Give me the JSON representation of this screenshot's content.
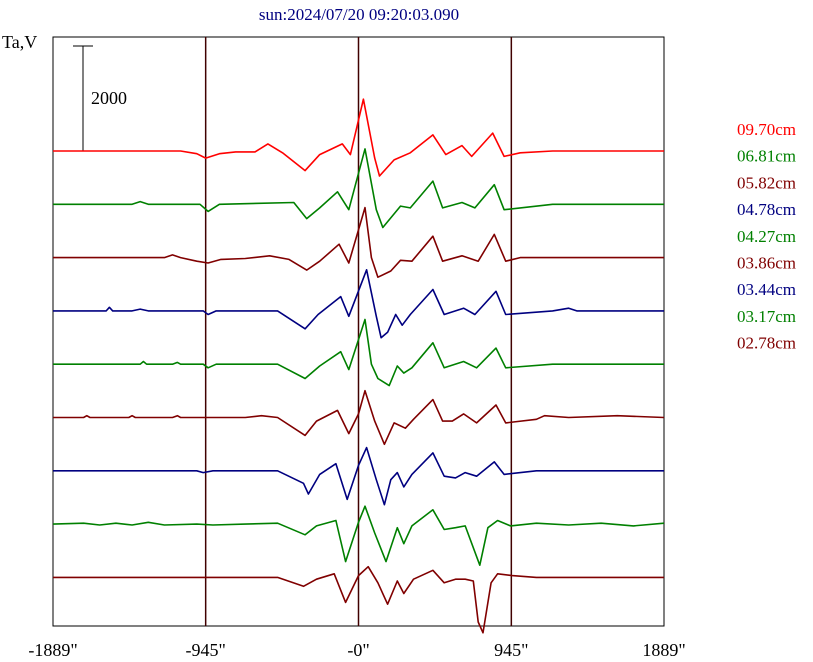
{
  "chart_data": {
    "type": "line",
    "title": "sun:2024/07/20 09:20:03.090",
    "ylabel": "Ta,V",
    "scale_bar_label": "2000",
    "xlim": [
      -1889,
      1889
    ],
    "x_ticks": [
      {
        "value": -1889,
        "label": "-1889\""
      },
      {
        "value": -945,
        "label": "-945\""
      },
      {
        "value": 0,
        "label": "-0\""
      },
      {
        "value": 945,
        "label": "945\""
      },
      {
        "value": 1889,
        "label": "1889\""
      }
    ],
    "vertical_lines": [
      -945,
      0,
      945
    ],
    "legend_position": "right",
    "colors": {
      "red": "#ff0000",
      "green": "#008000",
      "maroon": "#800000",
      "navy": "#000080",
      "axis": "#000000",
      "title": "#000080"
    },
    "series": [
      {
        "name": "09.70cm",
        "color": "#ff0000",
        "profile": [
          [
            -1889,
            0
          ],
          [
            -1100,
            0
          ],
          [
            -1000,
            -30
          ],
          [
            -945,
            -80
          ],
          [
            -860,
            -30
          ],
          [
            -760,
            -10
          ],
          [
            -640,
            -10
          ],
          [
            -560,
            80
          ],
          [
            -470,
            -20
          ],
          [
            -330,
            -220
          ],
          [
            -240,
            -40
          ],
          [
            -100,
            80
          ],
          [
            -50,
            -40
          ],
          [
            30,
            580
          ],
          [
            100,
            -80
          ],
          [
            130,
            -280
          ],
          [
            220,
            -100
          ],
          [
            320,
            -20
          ],
          [
            460,
            180
          ],
          [
            540,
            -40
          ],
          [
            640,
            60
          ],
          [
            700,
            -60
          ],
          [
            830,
            200
          ],
          [
            900,
            -60
          ],
          [
            1000,
            -20
          ],
          [
            1200,
            0
          ],
          [
            1889,
            0
          ]
        ]
      },
      {
        "name": "06.81cm",
        "color": "#008000",
        "profile": [
          [
            -1889,
            0
          ],
          [
            -1400,
            0
          ],
          [
            -1350,
            30
          ],
          [
            -1300,
            0
          ],
          [
            -980,
            0
          ],
          [
            -930,
            -80
          ],
          [
            -860,
            0
          ],
          [
            -400,
            20
          ],
          [
            -320,
            -160
          ],
          [
            -240,
            -40
          ],
          [
            -130,
            140
          ],
          [
            -60,
            -60
          ],
          [
            40,
            620
          ],
          [
            110,
            -60
          ],
          [
            150,
            -260
          ],
          [
            260,
            -20
          ],
          [
            320,
            -40
          ],
          [
            460,
            260
          ],
          [
            520,
            -40
          ],
          [
            640,
            20
          ],
          [
            720,
            -40
          ],
          [
            840,
            220
          ],
          [
            900,
            -60
          ],
          [
            1200,
            0
          ],
          [
            1889,
            0
          ]
        ]
      },
      {
        "name": "05.82cm",
        "color": "#800000",
        "profile": [
          [
            -1889,
            0
          ],
          [
            -1200,
            0
          ],
          [
            -1150,
            30
          ],
          [
            -1100,
            0
          ],
          [
            -1000,
            -40
          ],
          [
            -930,
            -60
          ],
          [
            -850,
            -20
          ],
          [
            -700,
            -10
          ],
          [
            -550,
            20
          ],
          [
            -430,
            -20
          ],
          [
            -320,
            -140
          ],
          [
            -240,
            -40
          ],
          [
            -120,
            150
          ],
          [
            -60,
            -60
          ],
          [
            40,
            560
          ],
          [
            80,
            0
          ],
          [
            120,
            -220
          ],
          [
            200,
            -150
          ],
          [
            260,
            -30
          ],
          [
            330,
            -40
          ],
          [
            460,
            240
          ],
          [
            520,
            -40
          ],
          [
            640,
            20
          ],
          [
            740,
            -40
          ],
          [
            840,
            260
          ],
          [
            910,
            -40
          ],
          [
            1000,
            0
          ],
          [
            1889,
            0
          ]
        ]
      },
      {
        "name": "04.78cm",
        "color": "#000080",
        "profile": [
          [
            -1889,
            0
          ],
          [
            -1560,
            0
          ],
          [
            -1540,
            40
          ],
          [
            -1520,
            0
          ],
          [
            -1400,
            0
          ],
          [
            -1350,
            20
          ],
          [
            -1300,
            0
          ],
          [
            -960,
            0
          ],
          [
            -930,
            -40
          ],
          [
            -880,
            0
          ],
          [
            -500,
            0
          ],
          [
            -330,
            -200
          ],
          [
            -250,
            -40
          ],
          [
            -110,
            160
          ],
          [
            -60,
            -60
          ],
          [
            50,
            460
          ],
          [
            110,
            -60
          ],
          [
            140,
            -300
          ],
          [
            180,
            -240
          ],
          [
            230,
            -40
          ],
          [
            270,
            -160
          ],
          [
            320,
            -40
          ],
          [
            460,
            240
          ],
          [
            530,
            -40
          ],
          [
            650,
            30
          ],
          [
            720,
            -40
          ],
          [
            850,
            220
          ],
          [
            910,
            -40
          ],
          [
            1200,
            0
          ],
          [
            1300,
            30
          ],
          [
            1350,
            0
          ],
          [
            1889,
            0
          ]
        ]
      },
      {
        "name": "04.27cm",
        "color": "#008000",
        "profile": [
          [
            -1889,
            0
          ],
          [
            -1350,
            0
          ],
          [
            -1330,
            30
          ],
          [
            -1310,
            0
          ],
          [
            -1150,
            0
          ],
          [
            -1120,
            20
          ],
          [
            -1100,
            0
          ],
          [
            -960,
            0
          ],
          [
            -930,
            -40
          ],
          [
            -880,
            0
          ],
          [
            -500,
            0
          ],
          [
            -330,
            -160
          ],
          [
            -240,
            -20
          ],
          [
            -110,
            140
          ],
          [
            -60,
            -60
          ],
          [
            40,
            500
          ],
          [
            80,
            0
          ],
          [
            120,
            -160
          ],
          [
            190,
            -240
          ],
          [
            240,
            -20
          ],
          [
            280,
            -100
          ],
          [
            330,
            -40
          ],
          [
            460,
            240
          ],
          [
            530,
            -40
          ],
          [
            650,
            30
          ],
          [
            730,
            -40
          ],
          [
            850,
            180
          ],
          [
            910,
            -40
          ],
          [
            1200,
            0
          ],
          [
            1889,
            0
          ]
        ]
      },
      {
        "name": "03.86cm",
        "color": "#800000",
        "profile": [
          [
            -1889,
            0
          ],
          [
            -1700,
            0
          ],
          [
            -1680,
            20
          ],
          [
            -1660,
            0
          ],
          [
            -1420,
            0
          ],
          [
            -1400,
            20
          ],
          [
            -1380,
            0
          ],
          [
            -1150,
            0
          ],
          [
            -1120,
            20
          ],
          [
            -1100,
            0
          ],
          [
            -900,
            0
          ],
          [
            -700,
            0
          ],
          [
            -600,
            20
          ],
          [
            -500,
            0
          ],
          [
            -330,
            -200
          ],
          [
            -260,
            -40
          ],
          [
            -130,
            80
          ],
          [
            -60,
            -180
          ],
          [
            0,
            40
          ],
          [
            40,
            300
          ],
          [
            100,
            -40
          ],
          [
            160,
            -300
          ],
          [
            220,
            -60
          ],
          [
            290,
            -120
          ],
          [
            340,
            -20
          ],
          [
            460,
            200
          ],
          [
            520,
            -40
          ],
          [
            580,
            -40
          ],
          [
            650,
            40
          ],
          [
            730,
            -60
          ],
          [
            850,
            140
          ],
          [
            910,
            -60
          ],
          [
            1100,
            -20
          ],
          [
            1150,
            20
          ],
          [
            1300,
            0
          ],
          [
            1600,
            20
          ],
          [
            1889,
            0
          ]
        ]
      },
      {
        "name": "03.44cm",
        "color": "#000080",
        "profile": [
          [
            -1889,
            0
          ],
          [
            -1000,
            0
          ],
          [
            -960,
            -20
          ],
          [
            -900,
            0
          ],
          [
            -500,
            0
          ],
          [
            -340,
            -140
          ],
          [
            -310,
            -260
          ],
          [
            -240,
            -40
          ],
          [
            -140,
            80
          ],
          [
            -70,
            -320
          ],
          [
            0,
            60
          ],
          [
            50,
            260
          ],
          [
            110,
            -100
          ],
          [
            160,
            -380
          ],
          [
            200,
            -100
          ],
          [
            240,
            -20
          ],
          [
            280,
            -180
          ],
          [
            330,
            -40
          ],
          [
            460,
            200
          ],
          [
            530,
            -60
          ],
          [
            600,
            -80
          ],
          [
            660,
            -20
          ],
          [
            730,
            -60
          ],
          [
            840,
            100
          ],
          [
            900,
            -40
          ],
          [
            1100,
            0
          ],
          [
            1889,
            0
          ]
        ]
      },
      {
        "name": "03.17cm",
        "color": "#008000",
        "profile": [
          [
            -1889,
            0
          ],
          [
            -1700,
            10
          ],
          [
            -1600,
            -10
          ],
          [
            -1500,
            10
          ],
          [
            -1400,
            -10
          ],
          [
            -1300,
            20
          ],
          [
            -1200,
            -10
          ],
          [
            -1000,
            0
          ],
          [
            -900,
            -10
          ],
          [
            -700,
            0
          ],
          [
            -500,
            10
          ],
          [
            -330,
            -120
          ],
          [
            -260,
            -20
          ],
          [
            -140,
            40
          ],
          [
            -80,
            -420
          ],
          [
            0,
            20
          ],
          [
            40,
            200
          ],
          [
            100,
            -100
          ],
          [
            170,
            -420
          ],
          [
            240,
            -40
          ],
          [
            280,
            -220
          ],
          [
            330,
            -20
          ],
          [
            460,
            160
          ],
          [
            530,
            -60
          ],
          [
            600,
            -40
          ],
          [
            660,
            -20
          ],
          [
            750,
            -460
          ],
          [
            800,
            -40
          ],
          [
            860,
            40
          ],
          [
            940,
            -20
          ],
          [
            1100,
            10
          ],
          [
            1300,
            -10
          ],
          [
            1500,
            10
          ],
          [
            1700,
            -20
          ],
          [
            1889,
            10
          ]
        ]
      },
      {
        "name": "02.78cm",
        "color": "#800000",
        "profile": [
          [
            -1889,
            0
          ],
          [
            -500,
            0
          ],
          [
            -340,
            -100
          ],
          [
            -260,
            -20
          ],
          [
            -150,
            40
          ],
          [
            -80,
            -280
          ],
          [
            0,
            20
          ],
          [
            60,
            120
          ],
          [
            120,
            -60
          ],
          [
            180,
            -300
          ],
          [
            240,
            -40
          ],
          [
            280,
            -180
          ],
          [
            340,
            -20
          ],
          [
            460,
            80
          ],
          [
            530,
            -60
          ],
          [
            600,
            -20
          ],
          [
            660,
            -20
          ],
          [
            710,
            -40
          ],
          [
            740,
            -500
          ],
          [
            770,
            -620
          ],
          [
            820,
            -60
          ],
          [
            860,
            40
          ],
          [
            950,
            20
          ],
          [
            1100,
            0
          ],
          [
            1889,
            0
          ]
        ]
      }
    ]
  }
}
